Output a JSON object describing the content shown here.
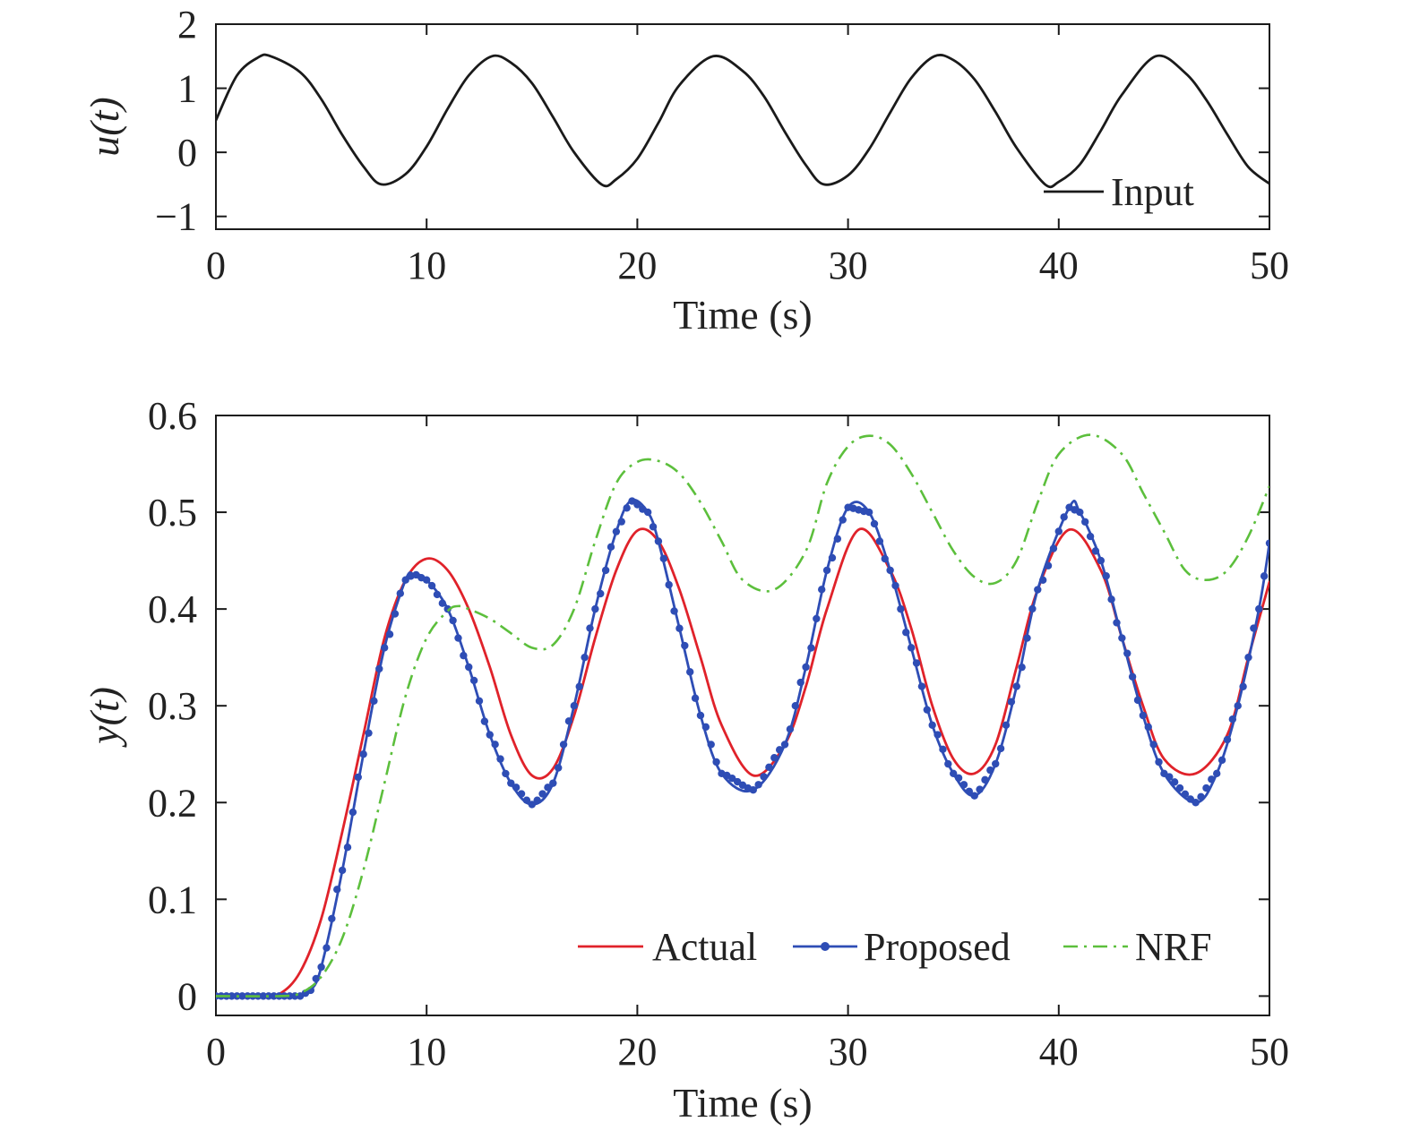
{
  "chart_data": [
    {
      "type": "line",
      "xlabel": "Time (s)",
      "ylabel": "u(t)",
      "xlim": [
        0,
        50
      ],
      "ylim": [
        -1.2,
        2
      ],
      "xticks": [
        0,
        10,
        20,
        30,
        40,
        50
      ],
      "yticks": [
        -1,
        0,
        1,
        2
      ],
      "ytick_labels": [
        "−1",
        "0",
        "1",
        "2"
      ],
      "grid": false,
      "legend_position": "bottom-right",
      "series": [
        {
          "name": "Input",
          "color": "#1a1a1a",
          "style": "solid",
          "x": [
            0,
            1,
            2,
            2.6,
            4,
            5,
            6,
            7,
            7.85,
            9,
            10,
            11,
            12,
            13.1,
            14,
            15,
            16,
            17,
            18.3,
            19,
            20,
            21,
            22,
            23.6,
            25,
            26,
            27,
            28,
            28.85,
            30,
            31,
            32,
            33,
            34.1,
            35,
            36,
            37,
            38,
            39.35,
            40,
            41,
            42,
            43,
            44.6,
            46,
            47,
            48,
            49,
            50
          ],
          "y": [
            0.5,
            1.2,
            1.48,
            1.5,
            1.25,
            0.83,
            0.27,
            -0.22,
            -0.5,
            -0.34,
            0.09,
            0.68,
            1.2,
            1.5,
            1.4,
            1.08,
            0.55,
            0.0,
            -0.5,
            -0.42,
            -0.1,
            0.46,
            1.05,
            1.5,
            1.27,
            0.88,
            0.32,
            -0.2,
            -0.5,
            -0.36,
            0.05,
            0.62,
            1.16,
            1.5,
            1.44,
            1.14,
            0.63,
            0.07,
            -0.5,
            -0.46,
            -0.19,
            0.34,
            0.9,
            1.5,
            1.24,
            0.82,
            0.28,
            -0.23,
            -0.49
          ]
        }
      ]
    },
    {
      "type": "line",
      "xlabel": "Time (s)",
      "ylabel": "y(t)",
      "xlim": [
        0,
        50
      ],
      "ylim": [
        -0.02,
        0.6
      ],
      "xticks": [
        0,
        10,
        20,
        30,
        40,
        50
      ],
      "yticks": [
        0,
        0.1,
        0.2,
        0.3,
        0.4,
        0.5,
        0.6
      ],
      "ytick_labels": [
        "0",
        "0.1",
        "0.2",
        "0.3",
        "0.4",
        "0.5",
        "0.6"
      ],
      "grid": false,
      "legend_position": "bottom-right",
      "series": [
        {
          "name": "Actual",
          "color": "#e0222a",
          "style": "solid",
          "x": [
            0,
            2,
            3,
            4,
            5,
            6,
            7,
            8,
            9,
            10,
            11,
            12,
            13,
            14,
            15,
            16,
            17,
            18,
            19,
            20,
            21,
            22,
            23,
            24,
            25.5,
            27,
            28,
            29,
            30.5,
            32,
            33,
            34,
            35,
            36,
            37,
            38,
            39,
            40.5,
            42,
            43,
            44,
            45,
            46.5,
            48,
            49,
            50
          ],
          "y": [
            0,
            0,
            0.002,
            0.025,
            0.08,
            0.17,
            0.27,
            0.37,
            0.43,
            0.452,
            0.44,
            0.4,
            0.34,
            0.27,
            0.228,
            0.235,
            0.29,
            0.37,
            0.44,
            0.481,
            0.47,
            0.42,
            0.35,
            0.28,
            0.228,
            0.26,
            0.32,
            0.4,
            0.482,
            0.44,
            0.38,
            0.3,
            0.245,
            0.23,
            0.26,
            0.34,
            0.42,
            0.482,
            0.44,
            0.37,
            0.3,
            0.245,
            0.23,
            0.27,
            0.35,
            0.428
          ]
        },
        {
          "name": "Proposed",
          "color": "#2e4db5",
          "style": "solid-dots",
          "x": [
            0,
            2,
            3,
            4,
            4.5,
            5,
            6,
            7,
            8,
            9,
            9.4,
            10,
            11,
            12,
            13,
            14,
            15,
            16,
            17,
            18,
            19,
            19.7,
            20.5,
            21,
            22,
            23,
            24,
            25.5,
            27,
            28,
            29,
            30,
            31,
            32,
            33,
            34,
            35,
            36,
            37,
            38,
            39,
            40.5,
            41,
            42,
            43,
            44,
            45,
            46.5,
            47.5,
            48.5,
            49.5,
            50
          ],
          "y": [
            0,
            0,
            0,
            0,
            0.006,
            0.03,
            0.13,
            0.25,
            0.36,
            0.43,
            0.436,
            0.43,
            0.4,
            0.34,
            0.27,
            0.22,
            0.198,
            0.22,
            0.3,
            0.4,
            0.48,
            0.512,
            0.5,
            0.47,
            0.38,
            0.29,
            0.23,
            0.213,
            0.26,
            0.34,
            0.44,
            0.505,
            0.5,
            0.44,
            0.36,
            0.28,
            0.23,
            0.207,
            0.24,
            0.32,
            0.42,
            0.505,
            0.5,
            0.45,
            0.37,
            0.29,
            0.23,
            0.2,
            0.23,
            0.3,
            0.4,
            0.468
          ]
        },
        {
          "name": "NRF",
          "color": "#5cbf3c",
          "style": "dash-dot",
          "x": [
            0,
            3,
            4,
            5,
            6,
            7,
            8,
            9,
            10,
            11,
            11.5,
            12,
            13,
            14,
            15,
            16,
            17,
            18,
            19,
            20,
            21,
            22,
            23,
            24,
            25,
            26.5,
            28,
            29,
            30,
            31,
            32,
            33,
            34,
            35,
            36,
            37,
            38,
            39,
            40,
            41.5,
            43,
            44,
            45,
            46,
            47,
            48,
            49,
            50
          ],
          "y": [
            0,
            0,
            0.003,
            0.02,
            0.06,
            0.13,
            0.22,
            0.31,
            0.37,
            0.398,
            0.403,
            0.4,
            0.39,
            0.375,
            0.36,
            0.363,
            0.4,
            0.47,
            0.53,
            0.552,
            0.553,
            0.54,
            0.51,
            0.47,
            0.43,
            0.42,
            0.46,
            0.53,
            0.568,
            0.579,
            0.57,
            0.54,
            0.5,
            0.46,
            0.433,
            0.427,
            0.45,
            0.51,
            0.56,
            0.58,
            0.56,
            0.52,
            0.48,
            0.44,
            0.43,
            0.44,
            0.475,
            0.527
          ]
        }
      ]
    }
  ]
}
